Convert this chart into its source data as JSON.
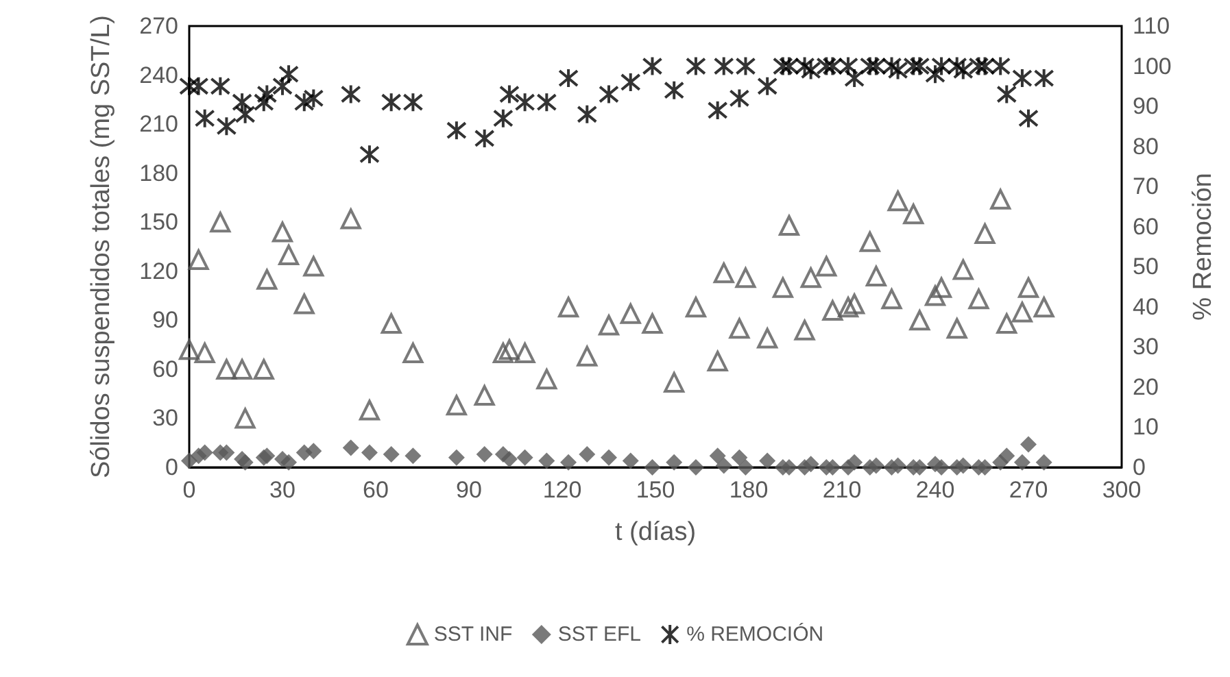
{
  "chart_data": {
    "type": "scatter",
    "xlabel": "t (días)",
    "ylabel": "Sólidos suspendidos totales (mg SST/L)",
    "y2label": "% Remoción",
    "xlim": [
      0,
      300
    ],
    "xticks": [
      0,
      30,
      60,
      90,
      120,
      150,
      180,
      210,
      240,
      270,
      300
    ],
    "ylim": [
      0,
      270
    ],
    "yticks": [
      0,
      30,
      60,
      90,
      120,
      150,
      180,
      210,
      240,
      270
    ],
    "y2lim": [
      0,
      110
    ],
    "y2ticks": [
      0,
      10,
      20,
      30,
      40,
      50,
      60,
      70,
      80,
      90,
      100,
      110
    ],
    "x": [
      0,
      3,
      5,
      10,
      12,
      17,
      18,
      24,
      25,
      30,
      32,
      37,
      40,
      52,
      58,
      65,
      72,
      86,
      95,
      101,
      103,
      108,
      115,
      122,
      128,
      135,
      142,
      149,
      156,
      163,
      170,
      172,
      177,
      179,
      186,
      191,
      193,
      198,
      200,
      205,
      207,
      212,
      214,
      219,
      221,
      226,
      228,
      233,
      235,
      240,
      242,
      247,
      249,
      254,
      256,
      261,
      263,
      268,
      270,
      275
    ],
    "grid": false,
    "legend": "bottom",
    "series": [
      {
        "name": "SST INF",
        "color": "#595959",
        "marker": "triangle",
        "values": [
          72,
          127,
          70,
          150,
          60,
          60,
          30,
          60,
          115,
          144,
          130,
          100,
          123,
          152,
          35,
          88,
          70,
          38,
          44,
          70,
          72,
          70,
          54,
          98,
          68,
          87,
          94,
          88,
          52,
          98,
          65,
          119,
          85,
          116,
          79,
          110,
          148,
          84,
          116,
          123,
          96,
          98,
          100,
          138,
          117,
          103,
          163,
          155,
          90,
          105,
          110,
          85,
          121,
          103,
          143,
          164,
          88,
          95,
          110,
          98
        ]
      },
      {
        "name": "SST EFL",
        "color": "#595959",
        "marker": "diamond",
        "values": [
          4,
          7,
          9,
          9,
          9,
          5,
          3,
          6,
          7,
          5,
          3,
          9,
          10,
          12,
          9,
          8,
          7,
          6,
          8,
          8,
          5,
          6,
          4,
          3,
          8,
          6,
          4,
          0,
          3,
          0,
          7,
          1,
          6,
          0,
          4,
          0,
          0,
          0,
          2,
          0,
          0,
          0,
          3,
          0,
          1,
          0,
          1,
          0,
          0,
          2,
          0,
          0,
          1,
          0,
          0,
          3,
          7,
          3,
          14,
          3
        ]
      },
      {
        "name": "% REMOCIÓN",
        "color": "#000000",
        "marker": "cross",
        "axis": "y2",
        "values": [
          95,
          95,
          87,
          95,
          85,
          91,
          88,
          91,
          93,
          95,
          98,
          91,
          92,
          93,
          78,
          91,
          91,
          84,
          82,
          87,
          93,
          91,
          91,
          97,
          88,
          93,
          96,
          100,
          94,
          100,
          89,
          100,
          92,
          100,
          95,
          100,
          100,
          100,
          99,
          100,
          100,
          100,
          97,
          100,
          100,
          100,
          99,
          100,
          100,
          98,
          100,
          100,
          99,
          100,
          100,
          100,
          93,
          97,
          87,
          97
        ]
      }
    ]
  }
}
